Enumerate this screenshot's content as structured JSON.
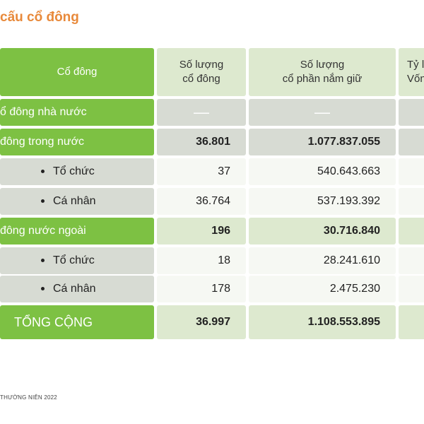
{
  "page_title": "cấu cổ đông",
  "table": {
    "headers": {
      "col1": "Cổ đông",
      "col2_line1": "Số lượng",
      "col2_line2": "cổ đông",
      "col3_line1": "Số lượng",
      "col3_line2": "cổ phần nắm giữ",
      "col4_line1": "Tỷ l",
      "col4_line2": "Vốn"
    },
    "rows": [
      {
        "label": "ổ đông nhà nước",
        "shareholders": "—",
        "shares": "—"
      },
      {
        "label": "đông trong nước",
        "shareholders": "36.801",
        "shares": "1.077.837.055"
      },
      {
        "label": "Tổ chức",
        "shareholders": "37",
        "shares": "540.643.663"
      },
      {
        "label": "Cá nhân",
        "shareholders": "36.764",
        "shares": "537.193.392"
      },
      {
        "label": "đông nước ngoài",
        "shareholders": "196",
        "shares": "30.716.840"
      },
      {
        "label": "Tổ chức",
        "shareholders": "18",
        "shares": "28.241.610"
      },
      {
        "label": "Cá nhân",
        "shareholders": "178",
        "shares": "2.475.230"
      },
      {
        "label": "TỔNG CỘNG",
        "shareholders": "36.997",
        "shares": "1.108.553.895"
      }
    ]
  },
  "footer": "THƯỜNG NIÊN 2022"
}
